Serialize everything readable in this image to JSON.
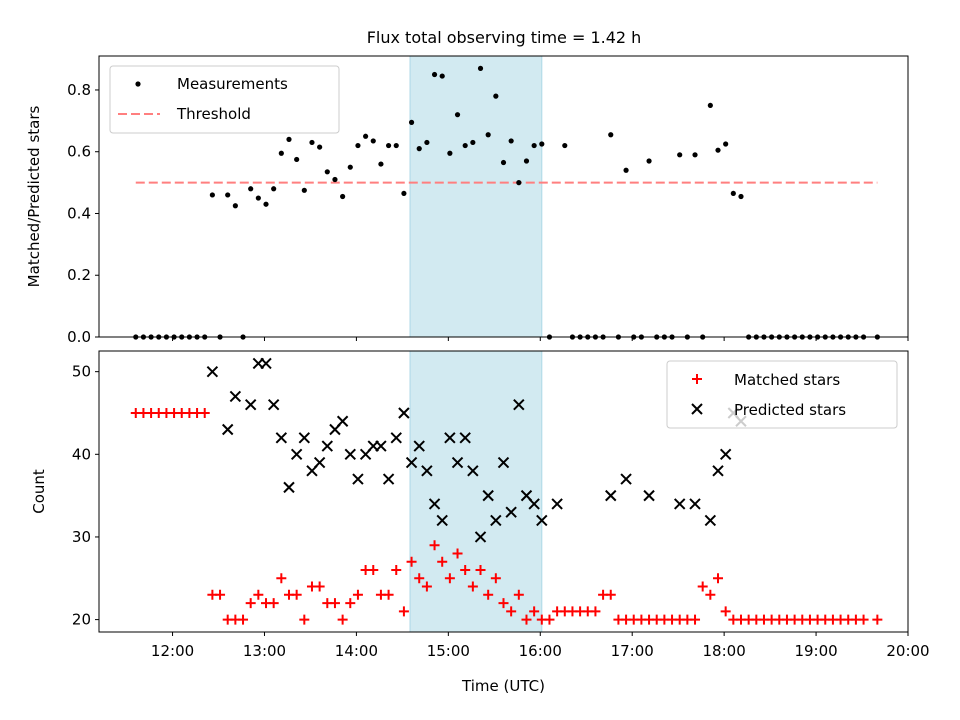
{
  "title": "Flux total observing time = 1.42 h",
  "colors": {
    "measurements": "#000000",
    "threshold": "#ff7f7f",
    "matched": "#ff0000",
    "predicted": "#000000",
    "span": "#add8e6"
  },
  "chart_data": [
    {
      "type": "scatter",
      "ylabel": "Matched/Predicted stars",
      "ylim": [
        0,
        0.91
      ],
      "yticks": [
        0.0,
        0.2,
        0.4,
        0.6,
        0.8
      ],
      "ytick_labels": [
        "0.0",
        "0.2",
        "0.4",
        "0.6",
        "0.8"
      ],
      "xlim": [
        "11:12",
        "20:00"
      ],
      "highlight_span": [
        "14:35",
        "16:01"
      ],
      "legend": {
        "placement": "upper-left",
        "entries": [
          "Measurements",
          "Threshold"
        ]
      },
      "threshold": {
        "name": "Threshold",
        "y": 0.5,
        "x": [
          "11:36",
          "19:40"
        ]
      },
      "series": [
        {
          "name": "Measurements",
          "points": [
            [
              "11:36",
              0
            ],
            [
              "11:41",
              0
            ],
            [
              "11:46",
              0
            ],
            [
              "11:51",
              0
            ],
            [
              "11:56",
              0
            ],
            [
              "12:01",
              0
            ],
            [
              "12:06",
              0
            ],
            [
              "12:11",
              0
            ],
            [
              "12:16",
              0
            ],
            [
              "12:21",
              0
            ],
            [
              "12:31",
              0
            ],
            [
              "12:46",
              0
            ],
            [
              "12:26",
              0.46
            ],
            [
              "12:36",
              0.46
            ],
            [
              "12:41",
              0.425
            ],
            [
              "12:51",
              0.48
            ],
            [
              "12:56",
              0.45
            ],
            [
              "13:01",
              0.43
            ],
            [
              "13:06",
              0.48
            ],
            [
              "13:11",
              0.595
            ],
            [
              "13:16",
              0.64
            ],
            [
              "13:21",
              0.575
            ],
            [
              "13:26",
              0.475
            ],
            [
              "13:31",
              0.63
            ],
            [
              "13:36",
              0.615
            ],
            [
              "13:41",
              0.535
            ],
            [
              "13:46",
              0.51
            ],
            [
              "13:51",
              0.455
            ],
            [
              "13:56",
              0.55
            ],
            [
              "14:01",
              0.62
            ],
            [
              "14:06",
              0.65
            ],
            [
              "14:11",
              0.635
            ],
            [
              "14:16",
              0.56
            ],
            [
              "14:21",
              0.62
            ],
            [
              "14:26",
              0.62
            ],
            [
              "14:31",
              0.465
            ],
            [
              "14:36",
              0.695
            ],
            [
              "14:41",
              0.61
            ],
            [
              "14:46",
              0.63
            ],
            [
              "14:51",
              0.85
            ],
            [
              "14:56",
              0.845
            ],
            [
              "15:01",
              0.595
            ],
            [
              "15:06",
              0.72
            ],
            [
              "15:11",
              0.62
            ],
            [
              "15:16",
              0.63
            ],
            [
              "15:21",
              0.87
            ],
            [
              "15:26",
              0.655
            ],
            [
              "15:31",
              0.78
            ],
            [
              "15:36",
              0.565
            ],
            [
              "15:41",
              0.635
            ],
            [
              "15:46",
              0.5
            ],
            [
              "15:51",
              0.57
            ],
            [
              "15:56",
              0.62
            ],
            [
              "16:01",
              0.625
            ],
            [
              "16:06",
              0
            ],
            [
              "16:16",
              0.62
            ],
            [
              "16:21",
              0
            ],
            [
              "16:26",
              0
            ],
            [
              "16:31",
              0
            ],
            [
              "16:36",
              0
            ],
            [
              "16:41",
              0
            ],
            [
              "16:46",
              0.655
            ],
            [
              "16:51",
              0
            ],
            [
              "16:56",
              0.54
            ],
            [
              "17:01",
              0
            ],
            [
              "17:06",
              0
            ],
            [
              "17:11",
              0.57
            ],
            [
              "17:16",
              0
            ],
            [
              "17:21",
              0
            ],
            [
              "17:26",
              0
            ],
            [
              "17:31",
              0.59
            ],
            [
              "17:36",
              0
            ],
            [
              "17:41",
              0.59
            ],
            [
              "17:46",
              0
            ],
            [
              "17:51",
              0.75
            ],
            [
              "17:56",
              0.605
            ],
            [
              "18:01",
              0.625
            ],
            [
              "18:06",
              0.465
            ],
            [
              "18:11",
              0.455
            ],
            [
              "18:16",
              0
            ],
            [
              "18:21",
              0
            ],
            [
              "18:26",
              0
            ],
            [
              "18:31",
              0
            ],
            [
              "18:36",
              0
            ],
            [
              "18:41",
              0
            ],
            [
              "18:46",
              0
            ],
            [
              "18:51",
              0
            ],
            [
              "18:56",
              0
            ],
            [
              "19:01",
              0
            ],
            [
              "19:06",
              0
            ],
            [
              "19:11",
              0
            ],
            [
              "19:16",
              0
            ],
            [
              "19:21",
              0
            ],
            [
              "19:26",
              0
            ],
            [
              "19:31",
              0
            ],
            [
              "19:40",
              0
            ]
          ]
        }
      ]
    },
    {
      "type": "scatter",
      "xlabel": "Time (UTC)",
      "ylabel": "Count",
      "ylim": [
        18.5,
        52.5
      ],
      "yticks": [
        20,
        30,
        40,
        50
      ],
      "ytick_labels": [
        "20",
        "30",
        "40",
        "50"
      ],
      "xlim": [
        "11:12",
        "20:00"
      ],
      "xticks": [
        "12:00",
        "13:00",
        "14:00",
        "15:00",
        "16:00",
        "17:00",
        "18:00",
        "19:00",
        "20:00"
      ],
      "highlight_span": [
        "14:35",
        "16:01"
      ],
      "legend": {
        "placement": "upper-right",
        "entries": [
          "Matched stars",
          "Predicted stars"
        ]
      },
      "series": [
        {
          "name": "Matched stars",
          "marker": "plus",
          "points": [
            [
              "11:36",
              45
            ],
            [
              "11:41",
              45
            ],
            [
              "11:46",
              45
            ],
            [
              "11:51",
              45
            ],
            [
              "11:56",
              45
            ],
            [
              "12:01",
              45
            ],
            [
              "12:06",
              45
            ],
            [
              "12:11",
              45
            ],
            [
              "12:16",
              45
            ],
            [
              "12:21",
              45
            ],
            [
              "12:26",
              23
            ],
            [
              "12:31",
              23
            ],
            [
              "12:36",
              20
            ],
            [
              "12:41",
              20
            ],
            [
              "12:46",
              20
            ],
            [
              "12:51",
              22
            ],
            [
              "12:56",
              23
            ],
            [
              "13:01",
              22
            ],
            [
              "13:06",
              22
            ],
            [
              "13:11",
              25
            ],
            [
              "13:16",
              23
            ],
            [
              "13:21",
              23
            ],
            [
              "13:26",
              20
            ],
            [
              "13:31",
              24
            ],
            [
              "13:36",
              24
            ],
            [
              "13:41",
              22
            ],
            [
              "13:46",
              22
            ],
            [
              "13:51",
              20
            ],
            [
              "13:56",
              22
            ],
            [
              "14:01",
              23
            ],
            [
              "14:06",
              26
            ],
            [
              "14:11",
              26
            ],
            [
              "14:16",
              23
            ],
            [
              "14:21",
              23
            ],
            [
              "14:26",
              26
            ],
            [
              "14:31",
              21
            ],
            [
              "14:36",
              27
            ],
            [
              "14:41",
              25
            ],
            [
              "14:46",
              24
            ],
            [
              "14:51",
              29
            ],
            [
              "14:56",
              27
            ],
            [
              "15:01",
              25
            ],
            [
              "15:06",
              28
            ],
            [
              "15:11",
              26
            ],
            [
              "15:16",
              24
            ],
            [
              "15:21",
              26
            ],
            [
              "15:26",
              23
            ],
            [
              "15:31",
              25
            ],
            [
              "15:36",
              22
            ],
            [
              "15:41",
              21
            ],
            [
              "15:46",
              23
            ],
            [
              "15:51",
              20
            ],
            [
              "15:56",
              21
            ],
            [
              "16:01",
              20
            ],
            [
              "16:06",
              20
            ],
            [
              "16:11",
              21
            ],
            [
              "16:16",
              21
            ],
            [
              "16:21",
              21
            ],
            [
              "16:26",
              21
            ],
            [
              "16:31",
              21
            ],
            [
              "16:36",
              21
            ],
            [
              "16:41",
              23
            ],
            [
              "16:46",
              23
            ],
            [
              "16:51",
              20
            ],
            [
              "16:56",
              20
            ],
            [
              "17:01",
              20
            ],
            [
              "17:06",
              20
            ],
            [
              "17:11",
              20
            ],
            [
              "17:16",
              20
            ],
            [
              "17:21",
              20
            ],
            [
              "17:26",
              20
            ],
            [
              "17:31",
              20
            ],
            [
              "17:36",
              20
            ],
            [
              "17:41",
              20
            ],
            [
              "17:46",
              24
            ],
            [
              "17:51",
              23
            ],
            [
              "17:56",
              25
            ],
            [
              "18:01",
              21
            ],
            [
              "18:06",
              20
            ],
            [
              "18:11",
              20
            ],
            [
              "18:16",
              20
            ],
            [
              "18:21",
              20
            ],
            [
              "18:26",
              20
            ],
            [
              "18:31",
              20
            ],
            [
              "18:36",
              20
            ],
            [
              "18:41",
              20
            ],
            [
              "18:46",
              20
            ],
            [
              "18:51",
              20
            ],
            [
              "18:56",
              20
            ],
            [
              "19:01",
              20
            ],
            [
              "19:06",
              20
            ],
            [
              "19:11",
              20
            ],
            [
              "19:16",
              20
            ],
            [
              "19:21",
              20
            ],
            [
              "19:26",
              20
            ],
            [
              "19:31",
              20
            ],
            [
              "19:40",
              20
            ]
          ]
        },
        {
          "name": "Predicted stars",
          "marker": "x",
          "points": [
            [
              "12:26",
              50
            ],
            [
              "12:36",
              43
            ],
            [
              "12:41",
              47
            ],
            [
              "12:51",
              46
            ],
            [
              "12:56",
              51
            ],
            [
              "13:01",
              51
            ],
            [
              "13:06",
              46
            ],
            [
              "13:11",
              42
            ],
            [
              "13:16",
              36
            ],
            [
              "13:21",
              40
            ],
            [
              "13:26",
              42
            ],
            [
              "13:31",
              38
            ],
            [
              "13:36",
              39
            ],
            [
              "13:41",
              41
            ],
            [
              "13:46",
              43
            ],
            [
              "13:51",
              44
            ],
            [
              "13:56",
              40
            ],
            [
              "14:01",
              37
            ],
            [
              "14:06",
              40
            ],
            [
              "14:11",
              41
            ],
            [
              "14:16",
              41
            ],
            [
              "14:21",
              37
            ],
            [
              "14:26",
              42
            ],
            [
              "14:31",
              45
            ],
            [
              "14:36",
              39
            ],
            [
              "14:41",
              41
            ],
            [
              "14:46",
              38
            ],
            [
              "14:51",
              34
            ],
            [
              "14:56",
              32
            ],
            [
              "15:01",
              42
            ],
            [
              "15:06",
              39
            ],
            [
              "15:11",
              42
            ],
            [
              "15:16",
              38
            ],
            [
              "15:21",
              30
            ],
            [
              "15:26",
              35
            ],
            [
              "15:31",
              32
            ],
            [
              "15:36",
              39
            ],
            [
              "15:41",
              33
            ],
            [
              "15:46",
              46
            ],
            [
              "15:51",
              35
            ],
            [
              "15:56",
              34
            ],
            [
              "16:01",
              32
            ],
            [
              "16:11",
              34
            ],
            [
              "16:46",
              35
            ],
            [
              "16:56",
              37
            ],
            [
              "17:11",
              35
            ],
            [
              "17:31",
              34
            ],
            [
              "17:41",
              34
            ],
            [
              "17:51",
              32
            ],
            [
              "17:56",
              38
            ],
            [
              "18:01",
              40
            ],
            [
              "18:06",
              45
            ],
            [
              "18:11",
              44
            ]
          ]
        }
      ]
    }
  ]
}
